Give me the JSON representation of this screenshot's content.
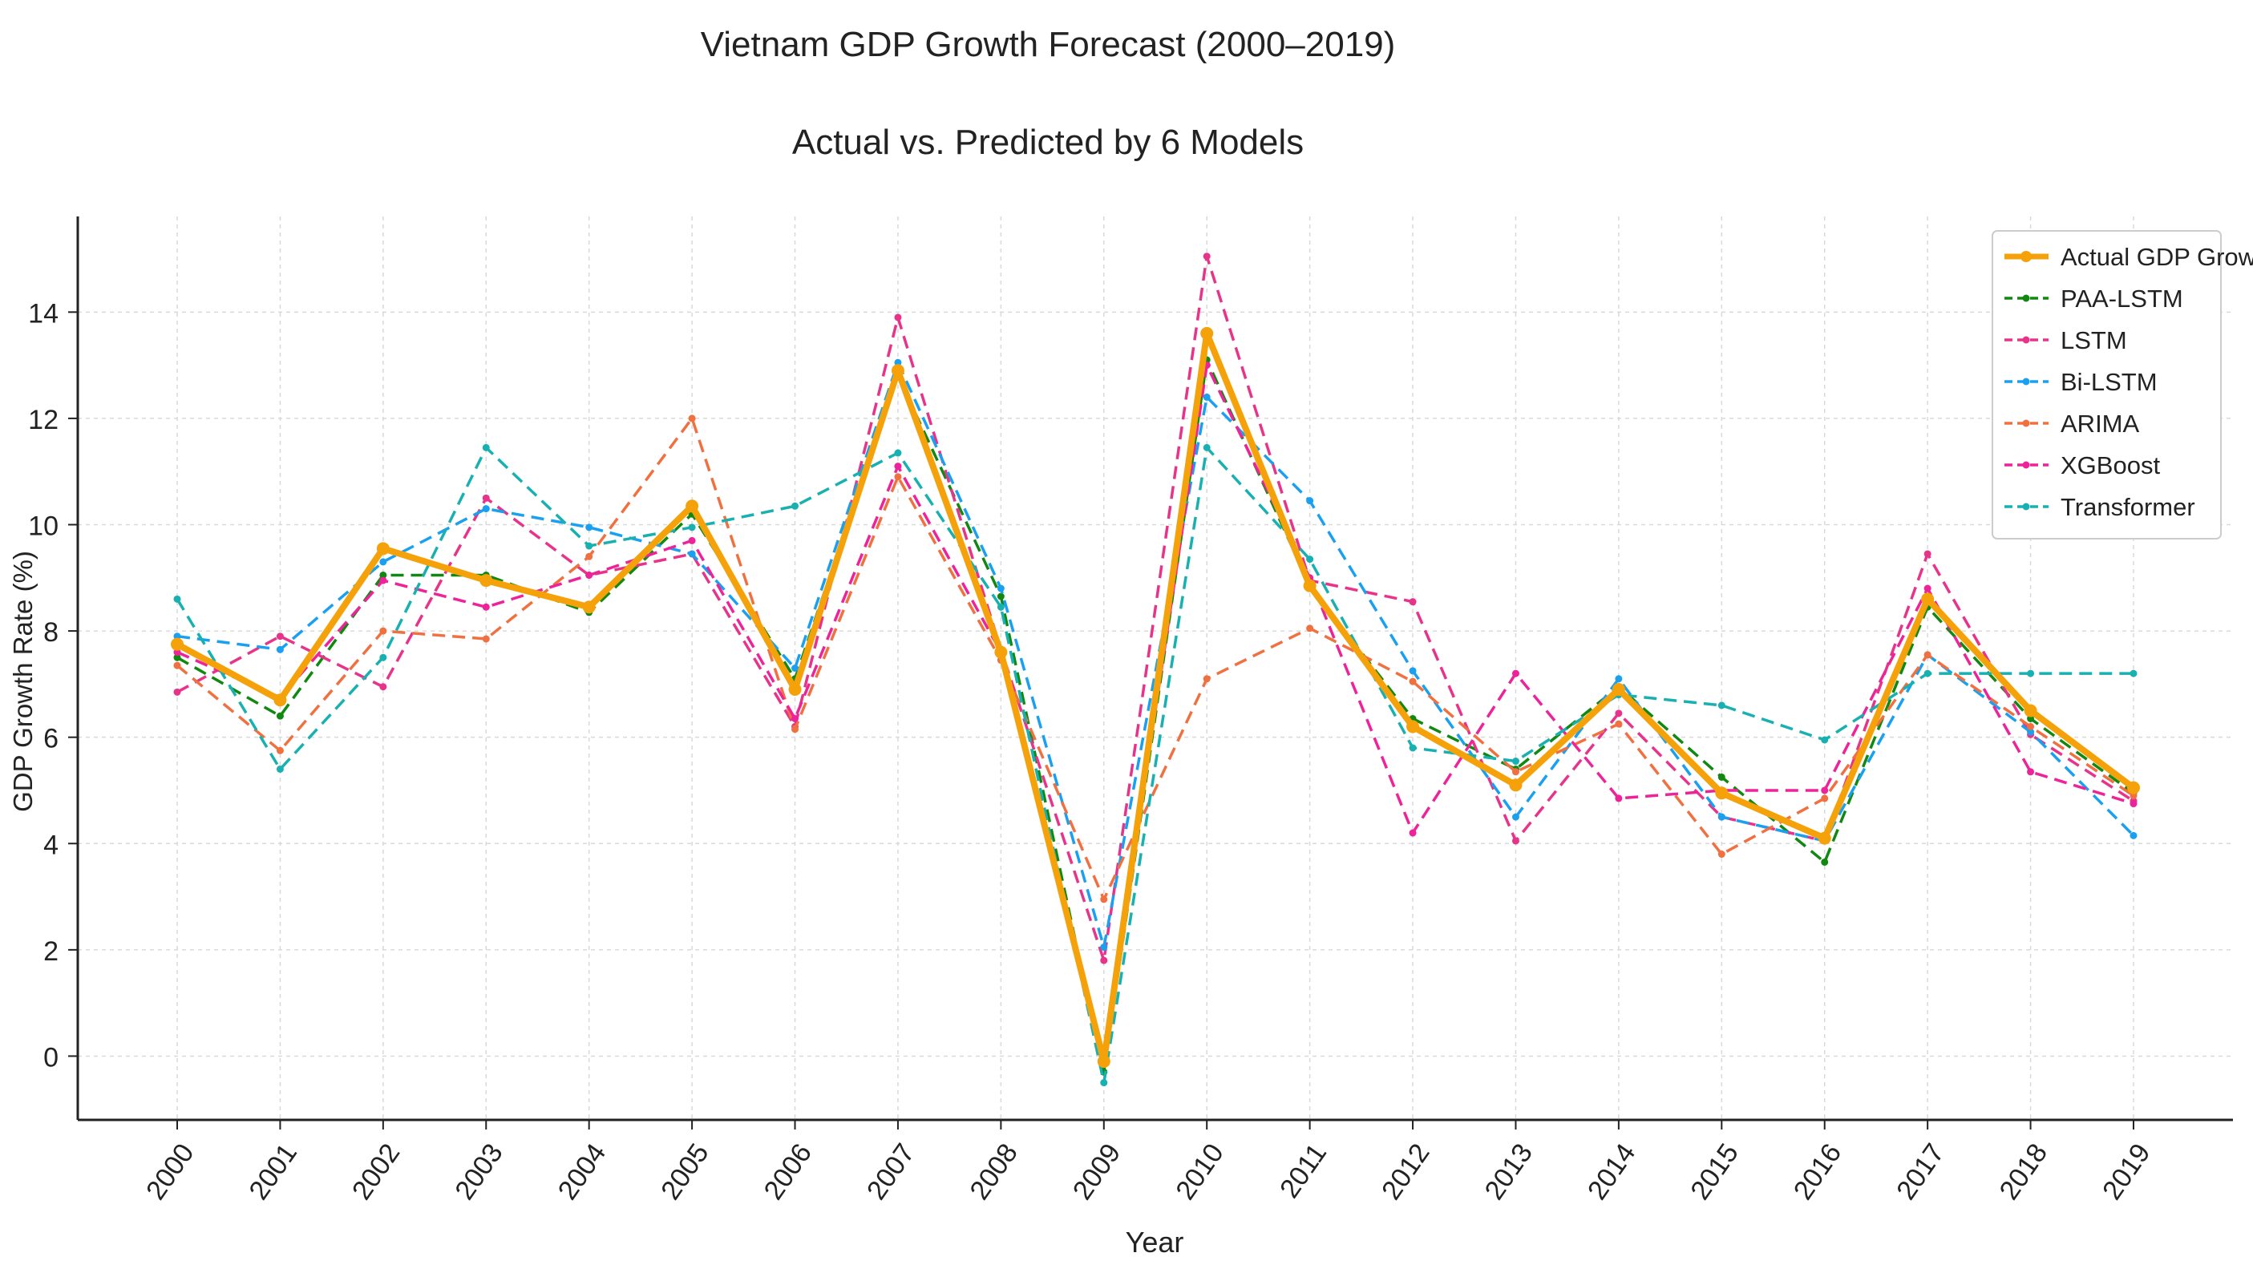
{
  "chart_data": {
    "type": "line",
    "title": "Vietnam GDP Growth Forecast (2000–2019)",
    "subtitle": "Actual vs. Predicted by 6 Models",
    "xlabel": "Year",
    "ylabel": "GDP Growth Rate (%)",
    "ylim": [
      -1.2,
      15.8
    ],
    "yticks": [
      0,
      2,
      4,
      6,
      8,
      10,
      12,
      14
    ],
    "grid": true,
    "legend_position": "top-right",
    "categories": [
      "2000",
      "2001",
      "2002",
      "2003",
      "2004",
      "2005",
      "2006",
      "2007",
      "2008",
      "2009",
      "2010",
      "2011",
      "2012",
      "2013",
      "2014",
      "2015",
      "2016",
      "2017",
      "2018",
      "2019"
    ],
    "series": [
      {
        "name": "Actual GDP Growth",
        "color": "#f5a20a",
        "style": "solid",
        "values": [
          7.75,
          6.7,
          9.55,
          8.95,
          8.45,
          10.35,
          6.9,
          12.9,
          7.6,
          -0.1,
          13.6,
          8.85,
          6.2,
          5.1,
          6.9,
          4.95,
          4.1,
          8.6,
          6.5,
          5.05
        ]
      },
      {
        "name": "PAA-LSTM",
        "color": "#118811",
        "style": "dashed",
        "values": [
          7.5,
          6.4,
          9.05,
          9.05,
          8.35,
          10.2,
          7.1,
          12.8,
          8.65,
          -0.3,
          13.1,
          8.85,
          6.35,
          5.4,
          6.95,
          5.25,
          3.65,
          8.45,
          6.35,
          4.95
        ]
      },
      {
        "name": "LSTM",
        "color": "#e8338a",
        "style": "dashed",
        "values": [
          6.85,
          7.9,
          6.95,
          10.5,
          9.05,
          9.45,
          6.2,
          13.9,
          7.65,
          1.8,
          15.05,
          8.95,
          8.55,
          4.05,
          6.45,
          4.5,
          4.05,
          9.45,
          6.05,
          4.8
        ]
      },
      {
        "name": "Bi-LSTM",
        "color": "#1aa0f0",
        "style": "dashed",
        "values": [
          7.9,
          7.65,
          9.3,
          10.3,
          9.95,
          9.45,
          7.3,
          13.05,
          8.8,
          2.05,
          12.4,
          10.45,
          7.25,
          4.5,
          7.1,
          4.5,
          4.05,
          7.55,
          6.1,
          4.15
        ]
      },
      {
        "name": "ARIMA",
        "color": "#f07040",
        "style": "dashed",
        "values": [
          7.35,
          5.75,
          8.0,
          7.85,
          9.4,
          12.0,
          6.15,
          10.9,
          7.45,
          2.95,
          7.1,
          8.05,
          7.05,
          5.35,
          6.25,
          3.8,
          4.85,
          7.55,
          6.2,
          4.9
        ]
      },
      {
        "name": "XGBoost",
        "color": "#ee2299",
        "style": "dashed",
        "values": [
          7.6,
          6.75,
          8.95,
          8.45,
          9.05,
          9.7,
          6.35,
          11.1,
          7.6,
          0.0,
          13.0,
          9.0,
          4.2,
          7.2,
          4.85,
          5.0,
          5.0,
          8.8,
          5.35,
          4.75
        ]
      },
      {
        "name": "Transformer",
        "color": "#18b0b0",
        "style": "dashed",
        "values": [
          8.6,
          5.4,
          7.5,
          11.45,
          9.6,
          9.95,
          10.35,
          11.35,
          8.45,
          -0.5,
          11.45,
          9.35,
          5.8,
          5.55,
          6.8,
          6.6,
          5.95,
          7.2,
          7.2,
          7.2
        ]
      }
    ]
  }
}
